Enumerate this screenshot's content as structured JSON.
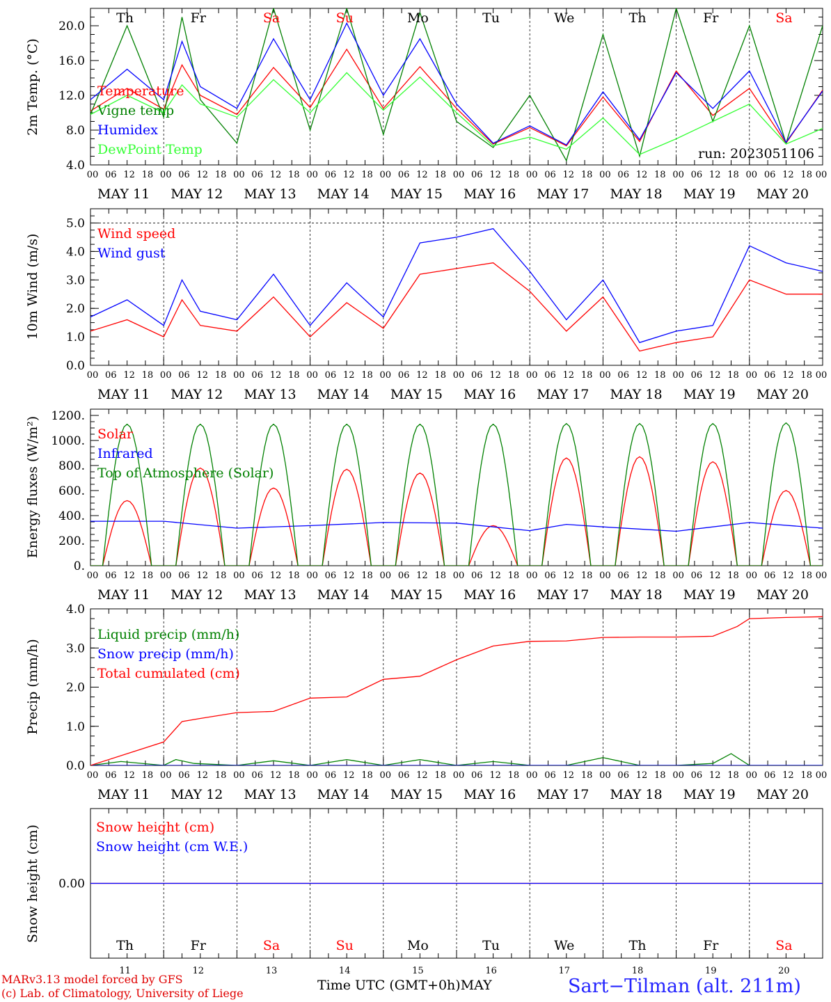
{
  "chart_data": [
    {
      "type": "line",
      "ylabel": "2m Temp. (°C)",
      "ylim": [
        4.0,
        22.0
      ],
      "yticks": [
        4.0,
        8.0,
        12.0,
        16.0,
        20.0
      ],
      "ytick_labels": [
        "4.0",
        "8.0",
        "12.0",
        "16.0",
        "20.0"
      ],
      "dashed_lines": [],
      "run_label": "run: 2023051106",
      "day_labels": [
        "Th",
        "Fr",
        "Sa",
        "Su",
        "Mo",
        "Tu",
        "We",
        "Th",
        "Fr",
        "Sa"
      ],
      "series": [
        {
          "name": "Temperature",
          "color": "#ff0000",
          "x": [
            0,
            12,
            24,
            30,
            36,
            48,
            60,
            72,
            84,
            96,
            108,
            120,
            132,
            144,
            156,
            168,
            180,
            192,
            204,
            216,
            228,
            240
          ],
          "y": [
            10.2,
            12.8,
            10.4,
            15.5,
            12.0,
            9.8,
            15.2,
            10.6,
            17.3,
            10.5,
            15.3,
            10.5,
            6.4,
            8.3,
            6.2,
            11.8,
            6.7,
            14.8,
            9.7,
            12.8,
            6.5,
            12.6
          ]
        },
        {
          "name": "Vigne temp",
          "color": "#008000",
          "x": [
            0,
            12,
            24,
            30,
            36,
            48,
            60,
            72,
            84,
            96,
            108,
            120,
            132,
            144,
            156,
            168,
            180,
            192,
            204,
            216,
            228,
            240
          ],
          "y": [
            9.8,
            20.0,
            9.5,
            21.0,
            11.5,
            6.5,
            22.0,
            8.0,
            22.0,
            7.5,
            21.5,
            9.0,
            6.0,
            12.0,
            4.5,
            19.0,
            5.0,
            22.0,
            9.0,
            20.0,
            6.5,
            20.0
          ]
        },
        {
          "name": "Humidex",
          "color": "#0000ff",
          "x": [
            0,
            12,
            24,
            30,
            36,
            48,
            60,
            72,
            84,
            96,
            108,
            120,
            132,
            144,
            156,
            168,
            180,
            192,
            204,
            216,
            228,
            240
          ],
          "y": [
            11.5,
            15.0,
            11.5,
            18.2,
            13.0,
            10.5,
            18.5,
            11.5,
            20.3,
            12.0,
            18.5,
            11.0,
            6.5,
            8.5,
            6.3,
            12.4,
            6.9,
            14.6,
            10.5,
            14.8,
            6.6,
            12.5
          ]
        },
        {
          "name": "DewPoint Temp",
          "color": "#33ff33",
          "x": [
            0,
            12,
            24,
            30,
            36,
            48,
            60,
            72,
            84,
            96,
            108,
            120,
            132,
            144,
            156,
            168,
            180,
            192,
            204,
            216,
            228,
            240
          ],
          "y": [
            9.8,
            12.0,
            10.0,
            13.2,
            11.0,
            9.5,
            13.8,
            10.0,
            14.6,
            10.3,
            14.1,
            10.0,
            6.2,
            7.2,
            5.8,
            9.4,
            5.2,
            7.0,
            9.0,
            11.0,
            6.4,
            8.2
          ]
        }
      ]
    },
    {
      "type": "line",
      "ylabel": "10m Wind (m/s)",
      "ylim": [
        0.0,
        5.5
      ],
      "yticks": [
        0.0,
        1.0,
        2.0,
        3.0,
        4.0,
        5.0
      ],
      "ytick_labels": [
        "0.0",
        "1.0",
        "2.0",
        "3.0",
        "4.0",
        "5.0"
      ],
      "dashed_lines": [
        5.0
      ],
      "series": [
        {
          "name": "Wind speed",
          "color": "#ff0000",
          "x": [
            0,
            12,
            24,
            30,
            36,
            48,
            60,
            72,
            84,
            96,
            108,
            120,
            132,
            144,
            156,
            168,
            180,
            192,
            204,
            216,
            228,
            240
          ],
          "y": [
            1.2,
            1.6,
            1.0,
            2.3,
            1.4,
            1.2,
            2.4,
            1.0,
            2.2,
            1.3,
            3.2,
            3.4,
            3.6,
            2.6,
            1.2,
            2.4,
            0.5,
            0.8,
            1.0,
            3.0,
            2.5,
            2.5
          ]
        },
        {
          "name": "Wind gust",
          "color": "#0000ff",
          "x": [
            0,
            12,
            24,
            30,
            36,
            48,
            60,
            72,
            84,
            96,
            108,
            120,
            132,
            144,
            156,
            168,
            180,
            192,
            204,
            216,
            228,
            240
          ],
          "y": [
            1.7,
            2.3,
            1.4,
            3.0,
            1.9,
            1.6,
            3.2,
            1.4,
            2.9,
            1.7,
            4.3,
            4.5,
            4.8,
            3.3,
            1.6,
            3.0,
            0.8,
            1.2,
            1.4,
            4.2,
            3.6,
            3.3
          ]
        }
      ]
    },
    {
      "type": "line",
      "ylabel": "Energy fluxes (W/m²)",
      "ylim": [
        0,
        1250
      ],
      "yticks": [
        0,
        200,
        400,
        600,
        800,
        1000,
        1200
      ],
      "ytick_labels": [
        "0.",
        "200.",
        "400.",
        "600.",
        "800.",
        "1000.",
        "1200."
      ],
      "dashed_lines": [],
      "series": [
        {
          "name": "Solar",
          "color": "#ff0000",
          "peaks": [
            520,
            780,
            620,
            770,
            740,
            320,
            860,
            870,
            830,
            600
          ]
        },
        {
          "name": "Infrared",
          "color": "#0000ff",
          "x": [
            0,
            24,
            48,
            72,
            96,
            120,
            144,
            156,
            168,
            192,
            216,
            240
          ],
          "y": [
            355,
            355,
            300,
            320,
            345,
            340,
            280,
            330,
            310,
            275,
            345,
            300
          ]
        },
        {
          "name": "Top of Atmosphere (Solar)",
          "color": "#008000",
          "peaks": [
            1130,
            1130,
            1130,
            1130,
            1130,
            1130,
            1135,
            1135,
            1135,
            1140
          ]
        }
      ]
    },
    {
      "type": "line",
      "ylabel": "Precip (mm/h)",
      "ylim": [
        0.0,
        4.0
      ],
      "yticks": [
        0.0,
        1.0,
        2.0,
        3.0,
        4.0
      ],
      "ytick_labels": [
        "0.0",
        "1.0",
        "2.0",
        "3.0",
        "4.0"
      ],
      "dashed_lines": [],
      "series": [
        {
          "name": "Liquid precip (mm/h)",
          "color": "#008000",
          "x": [
            0,
            10,
            24,
            28,
            34,
            48,
            60,
            72,
            84,
            96,
            108,
            120,
            132,
            144,
            156,
            168,
            180,
            192,
            204,
            210,
            216,
            240
          ],
          "y": [
            0.0,
            0.1,
            0.0,
            0.15,
            0.05,
            0.0,
            0.12,
            0.0,
            0.15,
            0.0,
            0.15,
            0.0,
            0.1,
            0.0,
            0.0,
            0.2,
            0.0,
            0.0,
            0.05,
            0.3,
            0.0,
            0.0
          ]
        },
        {
          "name": "Snow precip (mm/h)",
          "color": "#0000ff",
          "x": [
            0,
            240
          ],
          "y": [
            0.0,
            0.0
          ]
        },
        {
          "name": "Total cumulated (cm)",
          "color": "#ff0000",
          "x": [
            0,
            24,
            30,
            36,
            48,
            60,
            72,
            84,
            96,
            108,
            120,
            132,
            144,
            156,
            168,
            180,
            192,
            204,
            212,
            216,
            228,
            240
          ],
          "y": [
            0.0,
            0.6,
            1.12,
            1.2,
            1.35,
            1.38,
            1.72,
            1.75,
            2.2,
            2.28,
            2.7,
            3.05,
            3.17,
            3.18,
            3.27,
            3.28,
            3.28,
            3.3,
            3.55,
            3.75,
            3.78,
            3.8
          ]
        }
      ]
    },
    {
      "type": "line",
      "ylabel": "Snow height (cm)",
      "ylim": [
        -1.0,
        1.0
      ],
      "yticks": [
        0.0
      ],
      "ytick_labels": [
        "0.00"
      ],
      "dashed_lines": [],
      "series": [
        {
          "name": "Snow height (cm)",
          "color": "#ff0000",
          "x": [
            0,
            240
          ],
          "y": [
            0.0,
            0.0
          ]
        },
        {
          "name": "Snow height (cm W.E.)",
          "color": "#0000ff",
          "x": [
            0,
            240
          ],
          "y": [
            0.0,
            0.0
          ]
        }
      ],
      "day_labels": [
        "Th",
        "Fr",
        "Sa",
        "Su",
        "Mo",
        "Tu",
        "We",
        "Th",
        "Fr",
        "Sa"
      ],
      "day_numbers": [
        "11",
        "12",
        "13",
        "14",
        "15",
        "16",
        "17",
        "18",
        "19",
        "20"
      ]
    }
  ],
  "x_axis": {
    "hour_labels": [
      "00",
      "06",
      "12",
      "18"
    ],
    "end_label": "00",
    "dates": [
      "MAY 11",
      "MAY 12",
      "MAY 13",
      "MAY 14",
      "MAY 15",
      "MAY 16",
      "MAY 17",
      "MAY 18",
      "MAY 19",
      "MAY 20"
    ],
    "title": "Time UTC (GMT+0h)",
    "month": "MAY"
  },
  "weekend_color": "#ff0000",
  "weekend_days": [
    2,
    3,
    9
  ],
  "footer": {
    "credit_line1": "MARv3.13 model forced by GFS",
    "credit_line2": "(c) Lab. of Climatology, University of Liege",
    "station": "Sart−Tilman (alt. 211m)"
  }
}
